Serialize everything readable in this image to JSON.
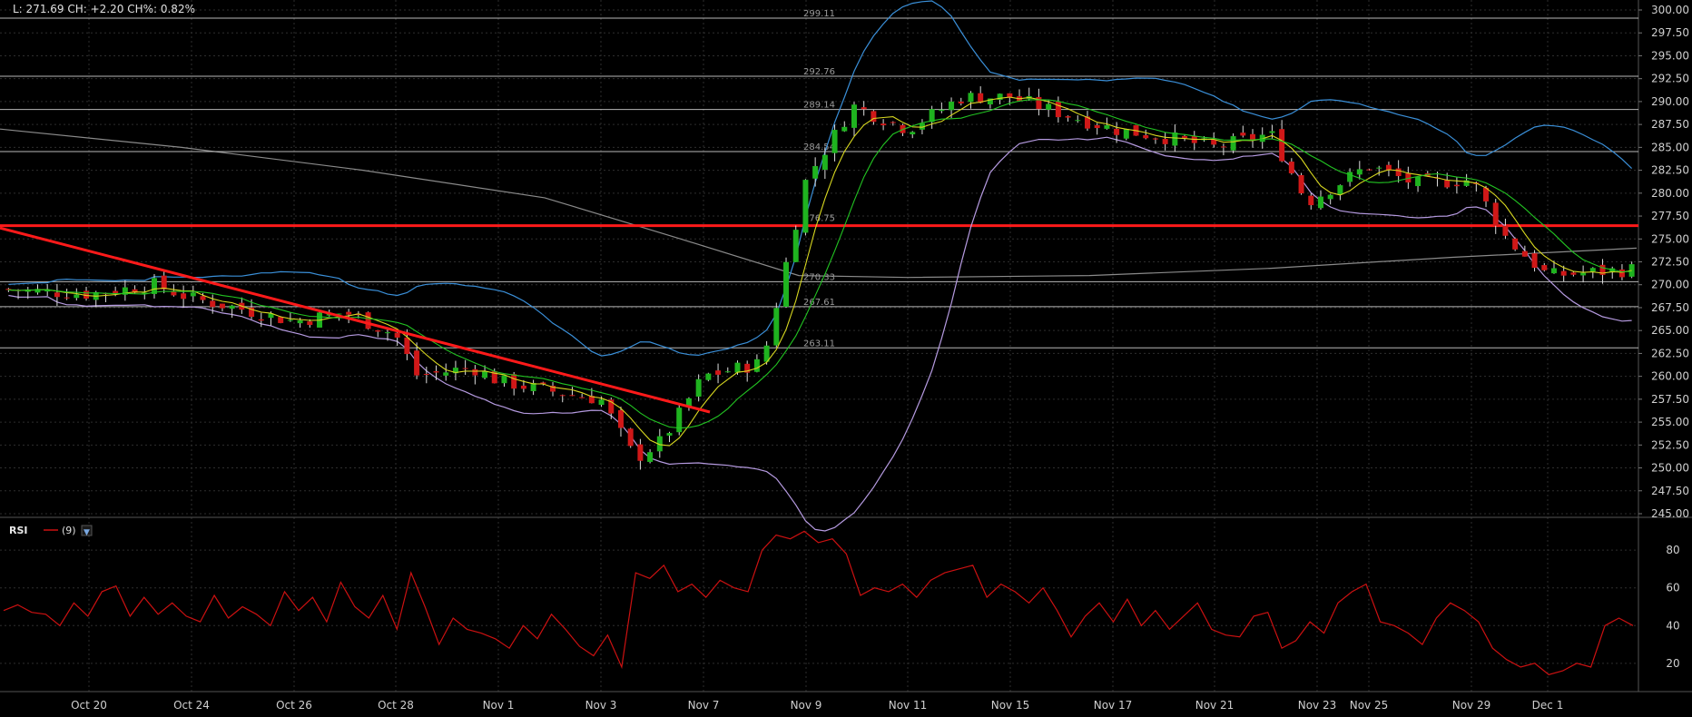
{
  "header": {
    "quote_text": "L: 271.69 CH: +2.20 CH%: 0.82%"
  },
  "rsi_panel": {
    "label": "RSI",
    "period_text": "(9)",
    "color": "#cc1111"
  },
  "colors": {
    "background": "#000000",
    "grid": "#2e2e2e",
    "up_candle": "#1fb31f",
    "down_candle": "#d01818",
    "bollinger_upper": "#3a8fd8",
    "bollinger_lower": "#b59ae0",
    "ma_fast": "#d8d820",
    "ma_slow": "#22c422",
    "long_ma": "#8a8a8a",
    "trendline": "#ff1a1a",
    "resistance": "#ff1a1a",
    "level_lines": "#d8d8d8"
  },
  "chart_data": [
    {
      "type": "candlestick",
      "title": "",
      "x_tick_labels": [
        "Oct 20",
        "Oct 24",
        "Oct 26",
        "Oct 28",
        "Nov 1",
        "Nov 3",
        "Nov 7",
        "Nov 9",
        "Nov 11",
        "Nov 15",
        "Nov 17",
        "Nov 21",
        "Nov 23",
        "Nov 25",
        "Nov 29",
        "Dec 1"
      ],
      "y_ticks": [
        245.0,
        247.5,
        250.0,
        252.5,
        255.0,
        257.5,
        260.0,
        262.5,
        265.0,
        267.5,
        270.0,
        272.5,
        275.0,
        277.5,
        280.0,
        282.5,
        285.0,
        287.5,
        290.0,
        292.5,
        295.0,
        297.5,
        300.0
      ],
      "y_tick_labels": [
        "245.00",
        "247.50",
        "250.00",
        "252.50",
        "255.00",
        "257.50",
        "260.00",
        "262.50",
        "265.00",
        "267.50",
        "270.00",
        "272.50",
        "275.00",
        "277.50",
        "280.00",
        "282.50",
        "285.00",
        "287.50",
        "290.00",
        "292.50",
        "295.00",
        "297.50",
        "300.00"
      ],
      "ylim": [
        242.5,
        300.5
      ],
      "price_levels": [
        {
          "value": 299.11,
          "label": "299.11"
        },
        {
          "value": 292.76,
          "label": "292.76"
        },
        {
          "value": 289.14,
          "label": "289.14"
        },
        {
          "value": 284.54,
          "label": "284.54"
        },
        {
          "value": 276.75,
          "label": "276.75"
        },
        {
          "value": 270.33,
          "label": "270.33"
        },
        {
          "value": 267.61,
          "label": "267.61"
        },
        {
          "value": 263.11,
          "label": "263.11"
        }
      ],
      "resistance_line": 276.75,
      "trendline": {
        "start": {
          "x": "Oct 18",
          "y": 276.2
        },
        "end": {
          "x": "Nov 6",
          "y": 256.1
        }
      },
      "close_path": [
        {
          "x": "Oct 18",
          "y": 269.5
        },
        {
          "x": "Oct 20",
          "y": 269.0
        },
        {
          "x": "Oct 22",
          "y": 270.0
        },
        {
          "x": "Oct 24",
          "y": 268.5
        },
        {
          "x": "Oct 25",
          "y": 267.5
        },
        {
          "x": "Oct 26",
          "y": 266.0
        },
        {
          "x": "Oct 27",
          "y": 267.0
        },
        {
          "x": "Oct 28",
          "y": 264.5
        },
        {
          "x": "Oct 28b",
          "y": 260.0
        },
        {
          "x": "Oct 31",
          "y": 261.0
        },
        {
          "x": "Nov 1",
          "y": 259.5
        },
        {
          "x": "Nov 2",
          "y": 258.5
        },
        {
          "x": "Nov 3",
          "y": 257.5
        },
        {
          "x": "Nov 4",
          "y": 251.0
        },
        {
          "x": "Nov 5",
          "y": 253.0
        },
        {
          "x": "Nov 7",
          "y": 260.0
        },
        {
          "x": "Nov 8",
          "y": 261.5
        },
        {
          "x": "Nov 9",
          "y": 281.5
        },
        {
          "x": "Nov 10",
          "y": 289.5
        },
        {
          "x": "Nov 11",
          "y": 287.0
        },
        {
          "x": "Nov 14",
          "y": 290.5
        },
        {
          "x": "Nov 15",
          "y": 290.5
        },
        {
          "x": "Nov 16",
          "y": 289.0
        },
        {
          "x": "Nov 17",
          "y": 287.0
        },
        {
          "x": "Nov 18",
          "y": 286.0
        },
        {
          "x": "Nov 21",
          "y": 285.0
        },
        {
          "x": "Nov 22",
          "y": 286.5
        },
        {
          "x": "Nov 23",
          "y": 279.0
        },
        {
          "x": "Nov 25",
          "y": 283.0
        },
        {
          "x": "Nov 28",
          "y": 281.0
        },
        {
          "x": "Nov 29",
          "y": 281.5
        },
        {
          "x": "Nov 30",
          "y": 275.0
        },
        {
          "x": "Dec 1",
          "y": 271.0
        },
        {
          "x": "Dec 2",
          "y": 271.7
        }
      ],
      "rsi": {
        "period": 9,
        "y_ticks": [
          20,
          40,
          60,
          80
        ],
        "ylim": [
          5,
          95
        ],
        "values": [
          48,
          51,
          47,
          46,
          40,
          52,
          45,
          58,
          61,
          45,
          55,
          46,
          52,
          45,
          42,
          56,
          44,
          50,
          46,
          40,
          58,
          48,
          55,
          42,
          63,
          50,
          44,
          56,
          38,
          68,
          50,
          30,
          44,
          38,
          36,
          33,
          28,
          40,
          33,
          46,
          38,
          29,
          24,
          35,
          18,
          68,
          65,
          72,
          58,
          62,
          55,
          64,
          60,
          58,
          80,
          88,
          86,
          90,
          84,
          86,
          78,
          56,
          60,
          58,
          62,
          55,
          64,
          68,
          70,
          72,
          55,
          62,
          58,
          52,
          60,
          48,
          34,
          45,
          52,
          42,
          54,
          40,
          48,
          38,
          45,
          52,
          38,
          35,
          34,
          45,
          47,
          28,
          32,
          42,
          36,
          52,
          58,
          62,
          42,
          40,
          36,
          30,
          44,
          52,
          48,
          42,
          28,
          22,
          18,
          20,
          14,
          16,
          20,
          18,
          40,
          44,
          40
        ]
      }
    }
  ]
}
